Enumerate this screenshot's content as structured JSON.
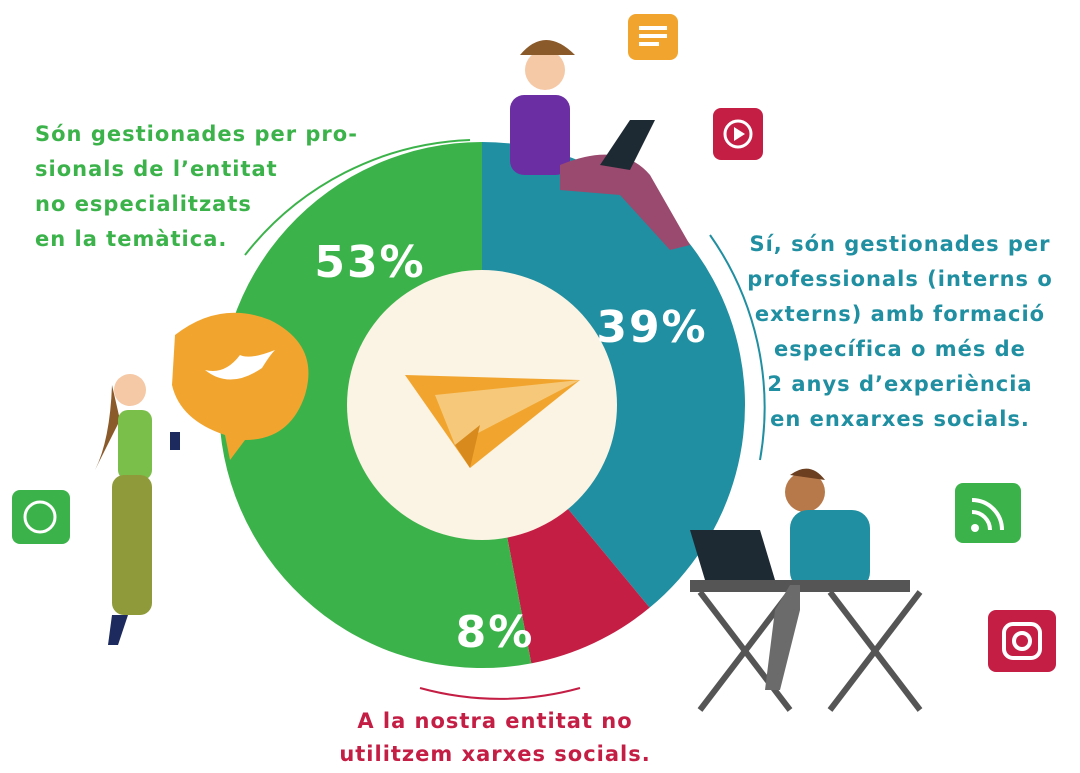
{
  "chart_data": {
    "type": "donut",
    "categories": [
      [
        "Són gestionades per pro-",
        "sionals de l’entitat",
        "no especialitzats",
        "en la temàtica."
      ],
      [
        "Sí, són gestionades per",
        "professionals (interns o",
        "externs) amb formació",
        "específica o més de",
        "2 anys d’experiència",
        "en enxarxes socials."
      ],
      [
        "A la nostra entitat no",
        "utilitzem xarxes socials."
      ]
    ],
    "values": [
      53,
      39,
      8
    ],
    "value_labels": [
      "53%",
      "39%",
      "8%"
    ],
    "colors": [
      "#3bb34a",
      "#1f8fa1",
      "#c41e45"
    ]
  }
}
